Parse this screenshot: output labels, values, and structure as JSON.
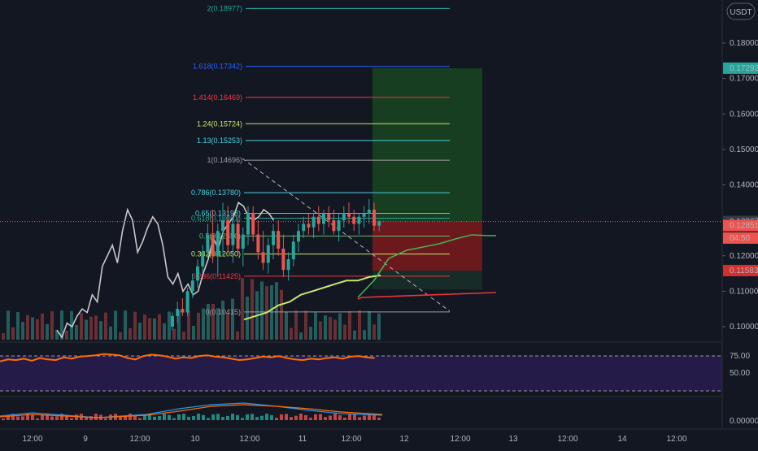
{
  "chart_data": {
    "type": "candlestick",
    "currency": "USDT",
    "price_axis": {
      "ticks": [
        "0.18000",
        "0.17000",
        "0.16000",
        "0.15000",
        "0.14000",
        "0.13000",
        "0.12000",
        "0.11000",
        "0.10000"
      ],
      "ylim": [
        0.0955,
        0.1995
      ]
    },
    "price_markers": [
      {
        "label": "0.17292",
        "price": 0.17292,
        "color": "#26a69a"
      },
      {
        "label": "0.12967",
        "price": 0.12967,
        "color": "#363a45"
      },
      {
        "label": "0.12851",
        "price": 0.12851,
        "color": "#ef5350"
      },
      {
        "label": "04:50",
        "price": 0.125,
        "color": "#ef5350"
      },
      {
        "label": "0.11583",
        "price": 0.11583,
        "color": "#d32f2f"
      }
    ],
    "fib_levels": [
      {
        "label": "2(0.18977)",
        "price": 0.18977,
        "color": "#26a69a"
      },
      {
        "label": "1.618(0.17342)",
        "price": 0.17342,
        "color": "#2962ff"
      },
      {
        "label": "1.414(0.16469)",
        "price": 0.16469,
        "color": "#f23645"
      },
      {
        "label": "1.24(0.15724)",
        "price": 0.15724,
        "color": "#c5e86c"
      },
      {
        "label": "1.13(0.15253)",
        "price": 0.15253,
        "color": "#4dd0e1"
      },
      {
        "label": "1(0.14696)",
        "price": 0.14696,
        "color": "#9e9e9e"
      },
      {
        "label": "0.786(0.13780)",
        "price": 0.1378,
        "color": "#4dd0e1"
      },
      {
        "label": "0.65(0.13198)",
        "price": 0.13198,
        "color": "#4dd0e1"
      },
      {
        "label": "0.618(0.13061)",
        "price": 0.13061,
        "color": "#26a69a"
      },
      {
        "label": "0.5(0.12556)",
        "price": 0.12556,
        "color": "#66bb6a"
      },
      {
        "label": "0.382(0.12050)",
        "price": 0.1205,
        "color": "#c5e86c"
      },
      {
        "label": "0.236(0.11425)",
        "price": 0.11425,
        "color": "#f23645"
      },
      {
        "label": "0(0.10415)",
        "price": 0.10415,
        "color": "#9e9e9e"
      }
    ],
    "time_axis": {
      "labels": [
        "12:00",
        "9",
        "12:00",
        "10",
        "12:00",
        "11",
        "12:00",
        "12",
        "12:00",
        "13",
        "12:00",
        "14",
        "12:00"
      ]
    },
    "candles": [
      {
        "o": 0.1,
        "h": 0.104,
        "l": 0.099,
        "c": 0.103
      },
      {
        "o": 0.103,
        "h": 0.107,
        "l": 0.101,
        "c": 0.105
      },
      {
        "o": 0.105,
        "h": 0.108,
        "l": 0.103,
        "c": 0.104
      },
      {
        "o": 0.104,
        "h": 0.111,
        "l": 0.103,
        "c": 0.11
      },
      {
        "o": 0.11,
        "h": 0.115,
        "l": 0.108,
        "c": 0.113
      },
      {
        "o": 0.113,
        "h": 0.119,
        "l": 0.111,
        "c": 0.117
      },
      {
        "o": 0.117,
        "h": 0.123,
        "l": 0.115,
        "c": 0.121
      },
      {
        "o": 0.121,
        "h": 0.129,
        "l": 0.119,
        "c": 0.126
      },
      {
        "o": 0.126,
        "h": 0.133,
        "l": 0.118,
        "c": 0.12
      },
      {
        "o": 0.12,
        "h": 0.129,
        "l": 0.114,
        "c": 0.127
      },
      {
        "o": 0.127,
        "h": 0.135,
        "l": 0.12,
        "c": 0.13
      },
      {
        "o": 0.13,
        "h": 0.134,
        "l": 0.121,
        "c": 0.123
      },
      {
        "o": 0.123,
        "h": 0.132,
        "l": 0.118,
        "c": 0.129
      },
      {
        "o": 0.129,
        "h": 0.131,
        "l": 0.12,
        "c": 0.122
      },
      {
        "o": 0.122,
        "h": 0.128,
        "l": 0.117,
        "c": 0.126
      },
      {
        "o": 0.126,
        "h": 0.134,
        "l": 0.123,
        "c": 0.132
      },
      {
        "o": 0.132,
        "h": 0.134,
        "l": 0.124,
        "c": 0.126
      },
      {
        "o": 0.126,
        "h": 0.13,
        "l": 0.119,
        "c": 0.121
      },
      {
        "o": 0.121,
        "h": 0.127,
        "l": 0.116,
        "c": 0.118
      },
      {
        "o": 0.118,
        "h": 0.125,
        "l": 0.115,
        "c": 0.123
      },
      {
        "o": 0.123,
        "h": 0.129,
        "l": 0.119,
        "c": 0.127
      },
      {
        "o": 0.127,
        "h": 0.13,
        "l": 0.12,
        "c": 0.122
      },
      {
        "o": 0.122,
        "h": 0.126,
        "l": 0.114,
        "c": 0.116
      },
      {
        "o": 0.116,
        "h": 0.121,
        "l": 0.113,
        "c": 0.119
      },
      {
        "o": 0.119,
        "h": 0.126,
        "l": 0.117,
        "c": 0.124
      },
      {
        "o": 0.124,
        "h": 0.129,
        "l": 0.121,
        "c": 0.127
      },
      {
        "o": 0.127,
        "h": 0.131,
        "l": 0.125,
        "c": 0.129
      },
      {
        "o": 0.129,
        "h": 0.132,
        "l": 0.126,
        "c": 0.128
      },
      {
        "o": 0.128,
        "h": 0.132,
        "l": 0.125,
        "c": 0.131
      },
      {
        "o": 0.131,
        "h": 0.134,
        "l": 0.127,
        "c": 0.129
      },
      {
        "o": 0.129,
        "h": 0.133,
        "l": 0.126,
        "c": 0.132
      },
      {
        "o": 0.132,
        "h": 0.134,
        "l": 0.128,
        "c": 0.13
      },
      {
        "o": 0.13,
        "h": 0.133,
        "l": 0.126,
        "c": 0.127
      },
      {
        "o": 0.127,
        "h": 0.132,
        "l": 0.124,
        "c": 0.13
      },
      {
        "o": 0.13,
        "h": 0.134,
        "l": 0.128,
        "c": 0.132
      },
      {
        "o": 0.132,
        "h": 0.135,
        "l": 0.129,
        "c": 0.131
      },
      {
        "o": 0.131,
        "h": 0.133,
        "l": 0.127,
        "c": 0.129
      },
      {
        "o": 0.129,
        "h": 0.132,
        "l": 0.126,
        "c": 0.131
      },
      {
        "o": 0.131,
        "h": 0.134,
        "l": 0.128,
        "c": 0.132
      },
      {
        "o": 0.132,
        "h": 0.136,
        "l": 0.129,
        "c": 0.133
      },
      {
        "o": 0.133,
        "h": 0.135,
        "l": 0.127,
        "c": 0.1285
      },
      {
        "o": 0.1285,
        "h": 0.13,
        "l": 0.127,
        "c": 0.1297
      }
    ],
    "gray_line": [
      0.099,
      0.097,
      0.101,
      0.1,
      0.103,
      0.105,
      0.104,
      0.109,
      0.107,
      0.117,
      0.12,
      0.123,
      0.118,
      0.127,
      0.133,
      0.13,
      0.121,
      0.124,
      0.128,
      0.131,
      0.129,
      0.123,
      0.114,
      0.112,
      0.115,
      0.11,
      0.112,
      0.109,
      0.11,
      0.115,
      0.119,
      0.125,
      0.122,
      0.127,
      0.129,
      0.131,
      0.135,
      0.134,
      0.131,
      0.13,
      0.131,
      0.133,
      0.132,
      0.13
    ],
    "ma_line": [
      0.102,
      0.103,
      0.104,
      0.106,
      0.107,
      0.109,
      0.11,
      0.111,
      0.112,
      0.113,
      0.113,
      0.114,
      0.1145
    ],
    "zones": {
      "target": {
        "top": 0.1729,
        "bottom": 0.1297,
        "color": "#1b5e20"
      },
      "stop": {
        "top": 0.1297,
        "bottom": 0.1158,
        "color": "#b71c1c"
      }
    },
    "rsi": {
      "levels": [
        "75.00",
        "50.00"
      ],
      "values": [
        55,
        58,
        57,
        59,
        56,
        60,
        58,
        57,
        61,
        59,
        62,
        63,
        64,
        66,
        65,
        64,
        60,
        58,
        63,
        65,
        64,
        62,
        59,
        61,
        60,
        63,
        64,
        62,
        61,
        59,
        57,
        58,
        60,
        62,
        61,
        63,
        60,
        58,
        57,
        59,
        58,
        60,
        61,
        59,
        62,
        63,
        61,
        60
      ]
    },
    "macd": {
      "zero_label": "0.00000"
    }
  }
}
